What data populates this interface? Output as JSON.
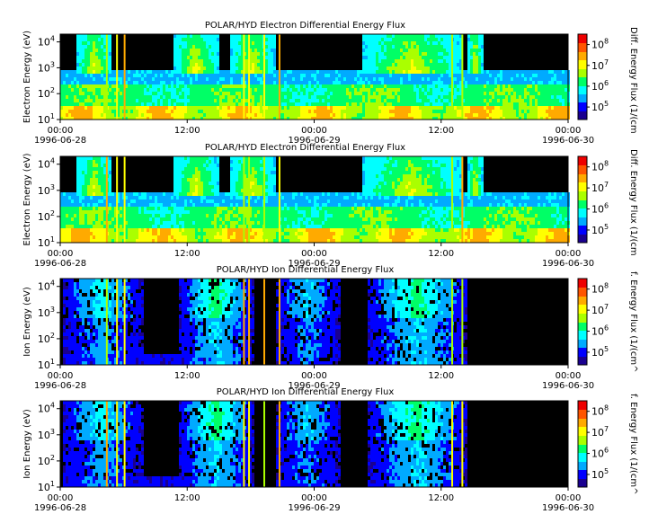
{
  "chart_data": [
    {
      "type": "heatmap",
      "title": "POLAR/HYD  Electron Differential Energy Flux",
      "ylabel": "Electron Energy (eV)",
      "yscale": "log",
      "ylim": [
        10,
        20000
      ],
      "yticks": [
        "10^1",
        "10^2",
        "10^3",
        "10^4"
      ],
      "x_ticks": [
        {
          "time": "00:00",
          "date": "1996-06-28"
        },
        {
          "time": "12:00",
          "date": ""
        },
        {
          "time": "00:00",
          "date": "1996-06-29"
        },
        {
          "time": "12:00",
          "date": ""
        },
        {
          "time": "00:00",
          "date": "1996-06-30"
        }
      ],
      "colorbar_label": "Diff. Energy Flux (1/(cm",
      "colorbar_ticks": [
        "10^5",
        "10^6",
        "10^7",
        "10^8"
      ],
      "colorbar_range": [
        20000,
        200000000
      ]
    },
    {
      "type": "heatmap",
      "title": "POLAR/HYD  Electron Differential Energy Flux",
      "ylabel": "Electron Energy (eV)",
      "yscale": "log",
      "ylim": [
        10,
        20000
      ],
      "yticks": [
        "10^1",
        "10^2",
        "10^3",
        "10^4"
      ],
      "x_ticks": [
        {
          "time": "00:00",
          "date": "1996-06-28"
        },
        {
          "time": "12:00",
          "date": ""
        },
        {
          "time": "00:00",
          "date": "1996-06-29"
        },
        {
          "time": "12:00",
          "date": ""
        },
        {
          "time": "00:00",
          "date": "1996-06-30"
        }
      ],
      "colorbar_label": "Diff. Energy Flux (1/(cm",
      "colorbar_ticks": [
        "10^5",
        "10^6",
        "10^7",
        "10^8"
      ],
      "colorbar_range": [
        20000,
        200000000
      ]
    },
    {
      "type": "heatmap",
      "title": "POLAR/HYD  Ion Differential Energy Flux",
      "ylabel": "Ion Energy (eV)",
      "yscale": "log",
      "ylim": [
        10,
        20000
      ],
      "yticks": [
        "10^1",
        "10^2",
        "10^3",
        "10^4"
      ],
      "x_ticks": [
        {
          "time": "00:00",
          "date": "1996-06-28"
        },
        {
          "time": "12:00",
          "date": ""
        },
        {
          "time": "00:00",
          "date": "1996-06-29"
        },
        {
          "time": "12:00",
          "date": ""
        },
        {
          "time": "00:00",
          "date": "1996-06-30"
        }
      ],
      "colorbar_label": "f. Energy Flux (1/(cm^",
      "colorbar_ticks": [
        "10^5",
        "10^6",
        "10^7",
        "10^8"
      ],
      "colorbar_range": [
        20000,
        200000000
      ]
    },
    {
      "type": "heatmap",
      "title": "POLAR/HYD  Ion Differential Energy Flux",
      "ylabel": "Ion Energy (eV)",
      "yscale": "log",
      "ylim": [
        10,
        20000
      ],
      "yticks": [
        "10^1",
        "10^2",
        "10^3",
        "10^4"
      ],
      "x_ticks": [
        {
          "time": "00:00",
          "date": "1996-06-28"
        },
        {
          "time": "12:00",
          "date": ""
        },
        {
          "time": "00:00",
          "date": "1996-06-29"
        },
        {
          "time": "12:00",
          "date": ""
        },
        {
          "time": "00:00",
          "date": "1996-06-30"
        }
      ],
      "colorbar_label": "f. Energy Flux (1/(cm^",
      "colorbar_ticks": [
        "10^5",
        "10^6",
        "10^7",
        "10^8"
      ],
      "colorbar_range": [
        20000,
        200000000
      ]
    }
  ],
  "colors": {
    "background": "#000000",
    "colormap": [
      "#1a0090",
      "#0000ff",
      "#00aaff",
      "#00ffff",
      "#00ff66",
      "#aaff00",
      "#ffff00",
      "#ffaa00",
      "#ff5500",
      "#ee0000"
    ]
  }
}
